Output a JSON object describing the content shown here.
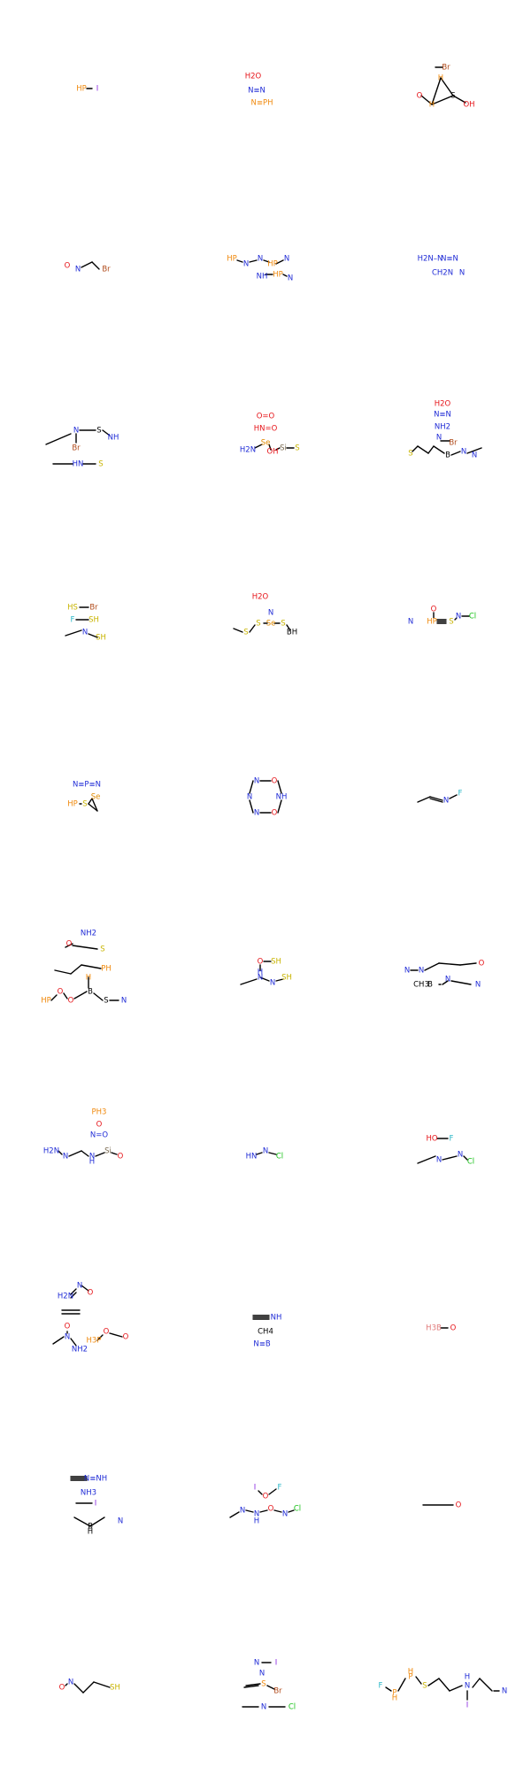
{
  "grid": {
    "rows": 10,
    "cols": 3
  },
  "colors": {
    "C": "#000000",
    "N": "#1f2bd6",
    "O": "#e6151a",
    "P": "#f08a0e",
    "S": "#c8b400",
    "F": "#2db8c8",
    "Cl": "#19c219",
    "Br": "#b04a1a",
    "I": "#8a2be2",
    "B": "#e07a7a",
    "Si": "#7a6a50",
    "Se": "#e08a00"
  },
  "molecules": [
    {
      "id": "m1",
      "atoms": [
        {
          "t": "HP",
          "c": "P",
          "x": -8,
          "y": 0
        },
        {
          "t": "I",
          "c": "I",
          "x": 10,
          "y": 0
        }
      ],
      "bonds": [
        [
          0,
          1,
          "P",
          "I"
        ]
      ]
    },
    {
      "id": "m2",
      "atoms": [
        {
          "t": "H2O",
          "c": "O",
          "x": -14,
          "y": -14
        },
        {
          "t": "N≡N",
          "c": "N",
          "x": -10,
          "y": 2
        },
        {
          "t": "N≡PH",
          "c": "P",
          "x": -4,
          "y": 16
        }
      ],
      "bonds": []
    },
    {
      "id": "m3",
      "atoms": [
        {
          "t": "Br",
          "c": "Br",
          "x": 4,
          "y": -24
        },
        {
          "t": "H",
          "c": "P",
          "x": -2,
          "y": -12
        },
        {
          "t": "O",
          "c": "O",
          "x": -26,
          "y": 8
        },
        {
          "t": "H",
          "c": "P",
          "x": -12,
          "y": 18
        },
        {
          "t": "S",
          "c": "C",
          "x": 12,
          "y": 8
        },
        {
          "t": "OH",
          "c": "O",
          "x": 30,
          "y": 18
        }
      ],
      "bonds": []
    },
    {
      "id": "m4",
      "atoms": [
        {
          "t": "O",
          "c": "O",
          "x": -24,
          "y": 0
        },
        {
          "t": "N",
          "c": "N",
          "x": -12,
          "y": 4
        },
        {
          "t": "Br",
          "c": "Br",
          "x": 20,
          "y": 4
        }
      ],
      "bonds": [
        [
          0,
          1,
          "O",
          "N"
        ]
      ]
    },
    {
      "id": "m5",
      "atoms": [
        {
          "t": "HP",
          "c": "P",
          "x": -38,
          "y": -8
        },
        {
          "t": "N",
          "c": "N",
          "x": -22,
          "y": -2
        },
        {
          "t": "N",
          "c": "N",
          "x": -6,
          "y": -8
        },
        {
          "t": "HP",
          "c": "P",
          "x": 8,
          "y": -2
        },
        {
          "t": "N",
          "c": "N",
          "x": 24,
          "y": -8
        },
        {
          "t": "NH",
          "c": "N",
          "x": -4,
          "y": 12
        },
        {
          "t": "HP",
          "c": "P",
          "x": 14,
          "y": 10
        },
        {
          "t": "N",
          "c": "N",
          "x": 28,
          "y": 14
        }
      ],
      "bonds": []
    },
    {
      "id": "m6",
      "atoms": [
        {
          "t": "H2N–N",
          "c": "N",
          "x": -14,
          "y": -8
        },
        {
          "t": "N≡N",
          "c": "N",
          "x": 8,
          "y": -8
        },
        {
          "t": "CH2N",
          "c": "N",
          "x": 0,
          "y": 8
        },
        {
          "t": "N",
          "c": "N",
          "x": 22,
          "y": 8
        }
      ],
      "bonds": []
    },
    {
      "id": "m7",
      "atoms": [
        {
          "t": "N",
          "c": "N",
          "x": -14,
          "y": -14
        },
        {
          "t": "S",
          "c": "C",
          "x": 12,
          "y": -14
        },
        {
          "t": "NH",
          "c": "N",
          "x": 28,
          "y": -6
        },
        {
          "t": "Br",
          "c": "Br",
          "x": -14,
          "y": 6
        },
        {
          "t": "HN",
          "c": "N",
          "x": -12,
          "y": 24
        },
        {
          "t": "S",
          "c": "S",
          "x": 14,
          "y": 24
        }
      ],
      "bonds": []
    },
    {
      "id": "m8",
      "atoms": [
        {
          "t": "O=O",
          "c": "O",
          "x": 0,
          "y": -30
        },
        {
          "t": "HN=O",
          "c": "O",
          "x": 0,
          "y": -16
        },
        {
          "t": "Se",
          "c": "Se",
          "x": 0,
          "y": 0
        },
        {
          "t": "H2N",
          "c": "N",
          "x": -20,
          "y": 8
        },
        {
          "t": "OH",
          "c": "O",
          "x": 8,
          "y": 10
        },
        {
          "t": "Si",
          "c": "Si",
          "x": 20,
          "y": 6
        },
        {
          "t": "S",
          "c": "S",
          "x": 36,
          "y": 6
        }
      ],
      "bonds": []
    },
    {
      "id": "m9",
      "atoms": [
        {
          "t": "H2O",
          "c": "O",
          "x": 0,
          "y": -44
        },
        {
          "t": "N≡N",
          "c": "N",
          "x": 0,
          "y": -32
        },
        {
          "t": "NH2",
          "c": "N",
          "x": 0,
          "y": -18
        },
        {
          "t": "N",
          "c": "N",
          "x": -4,
          "y": -6
        },
        {
          "t": "Br",
          "c": "Br",
          "x": 12,
          "y": 0
        },
        {
          "t": "S",
          "c": "S",
          "x": -36,
          "y": 12
        },
        {
          "t": "B",
          "c": "C",
          "x": 6,
          "y": 14
        },
        {
          "t": "N",
          "c": "N",
          "x": 24,
          "y": 10
        },
        {
          "t": "N",
          "c": "N",
          "x": 36,
          "y": 14
        }
      ],
      "bonds": []
    },
    {
      "id": "m10",
      "atoms": [
        {
          "t": "HS",
          "c": "S",
          "x": -18,
          "y": -14
        },
        {
          "t": "Br",
          "c": "Br",
          "x": 6,
          "y": -14
        },
        {
          "t": "F",
          "c": "F",
          "x": -18,
          "y": 0
        },
        {
          "t": "SH",
          "c": "S",
          "x": 6,
          "y": 0
        },
        {
          "t": "N",
          "c": "N",
          "x": -4,
          "y": 14
        },
        {
          "t": "SH",
          "c": "S",
          "x": 14,
          "y": 20
        }
      ],
      "bonds": []
    },
    {
      "id": "m11",
      "atoms": [
        {
          "t": "H2O",
          "c": "O",
          "x": -6,
          "y": -26
        },
        {
          "t": "N",
          "c": "N",
          "x": 6,
          "y": -8
        },
        {
          "t": "S",
          "c": "S",
          "x": -8,
          "y": 4
        },
        {
          "t": "Se",
          "c": "Se",
          "x": 6,
          "y": 4
        },
        {
          "t": "S",
          "c": "S",
          "x": 20,
          "y": 4
        },
        {
          "t": "S",
          "c": "S",
          "x": -22,
          "y": 14
        },
        {
          "t": "BH",
          "c": "C",
          "x": 30,
          "y": 14
        }
      ],
      "bonds": []
    },
    {
      "id": "m12",
      "atoms": [
        {
          "t": "O",
          "c": "O",
          "x": -10,
          "y": -12
        },
        {
          "t": "N",
          "c": "N",
          "x": -36,
          "y": 2
        },
        {
          "t": "HP",
          "c": "P",
          "x": -12,
          "y": 2
        },
        {
          "t": "S",
          "c": "S",
          "x": 10,
          "y": 2
        },
        {
          "t": "N",
          "c": "N",
          "x": 18,
          "y": -4
        },
        {
          "t": "Cl",
          "c": "Cl",
          "x": 34,
          "y": -4
        }
      ],
      "bonds": []
    },
    {
      "id": "m13",
      "atoms": [
        {
          "t": "N≡P≡N",
          "c": "N",
          "x": -2,
          "y": -14
        },
        {
          "t": "Se",
          "c": "Se",
          "x": 8,
          "y": 0
        },
        {
          "t": "HP",
          "c": "P",
          "x": -18,
          "y": 8
        },
        {
          "t": "S",
          "c": "S",
          "x": -4,
          "y": 8
        }
      ],
      "bonds": []
    },
    {
      "id": "m14",
      "atoms": [
        {
          "t": "N",
          "c": "N",
          "x": -10,
          "y": -18
        },
        {
          "t": "O",
          "c": "O",
          "x": 10,
          "y": -18
        },
        {
          "t": "NH",
          "c": "N",
          "x": 18,
          "y": 0
        },
        {
          "t": "N",
          "c": "N",
          "x": -18,
          "y": 0
        },
        {
          "t": "N",
          "c": "N",
          "x": -10,
          "y": 18
        },
        {
          "t": "O",
          "c": "O",
          "x": 10,
          "y": 18
        }
      ],
      "bonds": []
    },
    {
      "id": "m15",
      "atoms": [
        {
          "t": "N",
          "c": "N",
          "x": 4,
          "y": 4
        },
        {
          "t": "F",
          "c": "F",
          "x": 20,
          "y": -4
        }
      ],
      "bonds": []
    },
    {
      "id": "m16",
      "atoms": [
        {
          "t": "NH2",
          "c": "N",
          "x": 0,
          "y": -46
        },
        {
          "t": "O",
          "c": "O",
          "x": -22,
          "y": -34
        },
        {
          "t": "S",
          "c": "S",
          "x": 16,
          "y": -28
        },
        {
          "t": "PH",
          "c": "P",
          "x": 20,
          "y": -6
        },
        {
          "t": "H",
          "c": "P",
          "x": 0,
          "y": 4
        },
        {
          "t": "HP",
          "c": "P",
          "x": -48,
          "y": 30
        },
        {
          "t": "O",
          "c": "O",
          "x": -32,
          "y": 20
        },
        {
          "t": "O",
          "c": "O",
          "x": -20,
          "y": 30
        },
        {
          "t": "B",
          "c": "C",
          "x": 2,
          "y": 20
        },
        {
          "t": "S",
          "c": "C",
          "x": 20,
          "y": 30
        },
        {
          "t": "N",
          "c": "N",
          "x": 40,
          "y": 30
        }
      ],
      "bonds": []
    },
    {
      "id": "m17",
      "atoms": [
        {
          "t": "O",
          "c": "O",
          "x": -6,
          "y": -14
        },
        {
          "t": "SH",
          "c": "S",
          "x": 12,
          "y": -14
        },
        {
          "t": "H",
          "c": "N",
          "x": -6,
          "y": -2
        },
        {
          "t": "N",
          "c": "N",
          "x": -6,
          "y": 4
        },
        {
          "t": "N",
          "c": "N",
          "x": 8,
          "y": 10
        },
        {
          "t": "SH",
          "c": "S",
          "x": 24,
          "y": 4
        }
      ],
      "bonds": []
    },
    {
      "id": "m18",
      "atoms": [
        {
          "t": "N",
          "c": "N",
          "x": -40,
          "y": -4
        },
        {
          "t": "N",
          "c": "N",
          "x": -24,
          "y": -4
        },
        {
          "t": "O",
          "c": "O",
          "x": 44,
          "y": -12
        },
        {
          "t": "CH3",
          "c": "C",
          "x": -24,
          "y": 12
        },
        {
          "t": "B",
          "c": "C",
          "x": -14,
          "y": 12
        },
        {
          "t": "N",
          "c": "N",
          "x": 6,
          "y": 6
        },
        {
          "t": "N",
          "c": "N",
          "x": 40,
          "y": 12
        }
      ],
      "bonds": []
    },
    {
      "id": "m19",
      "atoms": [
        {
          "t": "PH3",
          "c": "P",
          "x": 12,
          "y": -44
        },
        {
          "t": "O",
          "c": "O",
          "x": 12,
          "y": -30
        },
        {
          "t": "N=O",
          "c": "N",
          "x": 12,
          "y": -18
        },
        {
          "t": "H2N",
          "c": "N",
          "x": -42,
          "y": 0
        },
        {
          "t": "N",
          "c": "N",
          "x": -26,
          "y": 6
        },
        {
          "t": "H",
          "c": "N",
          "x": 4,
          "y": 12
        },
        {
          "t": "N",
          "c": "N",
          "x": 4,
          "y": 6
        },
        {
          "t": "Si",
          "c": "Si",
          "x": 22,
          "y": 0
        },
        {
          "t": "O",
          "c": "O",
          "x": 36,
          "y": 6
        }
      ],
      "bonds": []
    },
    {
      "id": "m20",
      "atoms": [
        {
          "t": "HN",
          "c": "N",
          "x": -16,
          "y": 6
        },
        {
          "t": "N",
          "c": "N",
          "x": 0,
          "y": 0
        },
        {
          "t": "Cl",
          "c": "Cl",
          "x": 16,
          "y": 6
        }
      ],
      "bonds": []
    },
    {
      "id": "m21",
      "atoms": [
        {
          "t": "HO",
          "c": "O",
          "x": -12,
          "y": -14
        },
        {
          "t": "F",
          "c": "F",
          "x": 10,
          "y": -14
        },
        {
          "t": "N",
          "c": "N",
          "x": -4,
          "y": 10
        },
        {
          "t": "N",
          "c": "N",
          "x": 20,
          "y": 4
        },
        {
          "t": "Cl",
          "c": "Cl",
          "x": 32,
          "y": 12
        }
      ],
      "bonds": []
    },
    {
      "id": "m22",
      "atoms": [
        {
          "t": "N",
          "c": "N",
          "x": -10,
          "y": -48
        },
        {
          "t": "H2N",
          "c": "N",
          "x": -26,
          "y": -36
        },
        {
          "t": "O",
          "c": "O",
          "x": 2,
          "y": -40
        },
        {
          "t": "O",
          "c": "O",
          "x": -24,
          "y": -2
        },
        {
          "t": "N",
          "c": "N",
          "x": -24,
          "y": 10
        },
        {
          "t": "NH2",
          "c": "N",
          "x": -10,
          "y": 24
        },
        {
          "t": "H3P",
          "c": "P",
          "x": 6,
          "y": 14
        },
        {
          "t": "O",
          "c": "O",
          "x": 20,
          "y": 4
        },
        {
          "t": "O",
          "c": "O",
          "x": 42,
          "y": 10
        }
      ],
      "bonds": []
    },
    {
      "id": "m23",
      "atoms": [
        {
          "t": "NH",
          "c": "N",
          "x": 12,
          "y": -12
        },
        {
          "t": "CH4",
          "c": "C",
          "x": 0,
          "y": 4
        },
        {
          "t": "N≡B",
          "c": "N",
          "x": -4,
          "y": 18
        }
      ],
      "bonds": []
    },
    {
      "id": "m24",
      "atoms": [
        {
          "t": "H3B",
          "c": "B",
          "x": -10,
          "y": 0
        },
        {
          "t": "O",
          "c": "O",
          "x": 12,
          "y": 0
        }
      ],
      "bonds": []
    },
    {
      "id": "m25",
      "atoms": [
        {
          "t": "N≡NH",
          "c": "N",
          "x": 8,
          "y": -30
        },
        {
          "t": "NH3",
          "c": "N",
          "x": 0,
          "y": -14
        },
        {
          "t": "I",
          "c": "I",
          "x": 8,
          "y": -2
        },
        {
          "t": "B",
          "c": "C",
          "x": 2,
          "y": 24
        },
        {
          "t": "H",
          "c": "C",
          "x": 2,
          "y": 30
        },
        {
          "t": "N",
          "c": "N",
          "x": 36,
          "y": 18
        }
      ],
      "bonds": []
    },
    {
      "id": "m26",
      "atoms": [
        {
          "t": "I",
          "c": "I",
          "x": -12,
          "y": -20
        },
        {
          "t": "O",
          "c": "O",
          "x": 0,
          "y": -10
        },
        {
          "t": "F",
          "c": "F",
          "x": 16,
          "y": -20
        },
        {
          "t": "N",
          "c": "N",
          "x": -26,
          "y": 6
        },
        {
          "t": "N",
          "c": "N",
          "x": -10,
          "y": 10
        },
        {
          "t": "H",
          "c": "N",
          "x": -10,
          "y": 18
        },
        {
          "t": "O",
          "c": "O",
          "x": 6,
          "y": 4
        },
        {
          "t": "N",
          "c": "N",
          "x": 22,
          "y": 10
        },
        {
          "t": "Cl",
          "c": "Cl",
          "x": 36,
          "y": 4
        }
      ],
      "bonds": []
    },
    {
      "id": "m27",
      "atoms": [
        {
          "t": "O",
          "c": "O",
          "x": 18,
          "y": 0
        }
      ],
      "bonds": []
    },
    {
      "id": "m28",
      "atoms": [
        {
          "t": "O",
          "c": "O",
          "x": -30,
          "y": 6
        },
        {
          "t": "N",
          "c": "N",
          "x": -20,
          "y": 0
        },
        {
          "t": "SH",
          "c": "S",
          "x": 30,
          "y": 6
        }
      ],
      "bonds": []
    },
    {
      "id": "m29",
      "atoms": [
        {
          "t": "N",
          "c": "N",
          "x": -10,
          "y": -22
        },
        {
          "t": "I",
          "c": "I",
          "x": 12,
          "y": -22
        },
        {
          "t": "N",
          "c": "N",
          "x": -4,
          "y": -10
        },
        {
          "t": "S",
          "c": "P",
          "x": -2,
          "y": 2
        },
        {
          "t": "Br",
          "c": "Br",
          "x": 14,
          "y": 10
        },
        {
          "t": "N",
          "c": "N",
          "x": -2,
          "y": 28
        },
        {
          "t": "Cl",
          "c": "Cl",
          "x": 30,
          "y": 28
        }
      ],
      "bonds": []
    },
    {
      "id": "m30",
      "atoms": [
        {
          "t": "F",
          "c": "F",
          "x": -70,
          "y": 4
        },
        {
          "t": "P",
          "c": "P",
          "x": -54,
          "y": 12
        },
        {
          "t": "H",
          "c": "P",
          "x": -54,
          "y": 18
        },
        {
          "t": "P",
          "c": "P",
          "x": -36,
          "y": -6
        },
        {
          "t": "H",
          "c": "P",
          "x": -36,
          "y": -12
        },
        {
          "t": "S",
          "c": "S",
          "x": -20,
          "y": 4
        },
        {
          "t": "N",
          "c": "N",
          "x": 28,
          "y": 4
        },
        {
          "t": "H",
          "c": "N",
          "x": 28,
          "y": -6
        },
        {
          "t": "I",
          "c": "I",
          "x": 28,
          "y": 26
        },
        {
          "t": "N",
          "c": "N",
          "x": 70,
          "y": 10
        }
      ],
      "bonds": []
    }
  ]
}
